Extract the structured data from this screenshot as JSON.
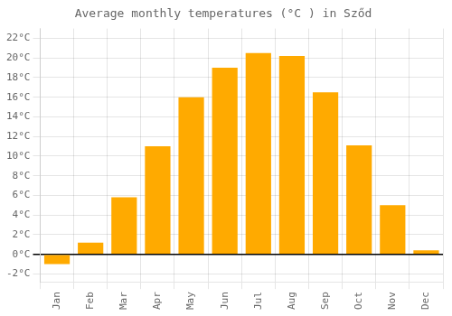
{
  "chart_data": {
    "type": "bar",
    "title": "Average monthly temperatures (°C ) in Sződ",
    "categories": [
      "Jan",
      "Feb",
      "Mar",
      "Apr",
      "May",
      "Jun",
      "Jul",
      "Aug",
      "Sep",
      "Oct",
      "Nov",
      "Dec"
    ],
    "values": [
      -1.0,
      1.2,
      5.8,
      11.0,
      16.0,
      19.0,
      20.5,
      20.2,
      16.5,
      11.1,
      5.0,
      0.4
    ],
    "color": "#FFAA00",
    "ylim": [
      -2.8,
      23.0
    ],
    "yticks": [
      {
        "value": -2,
        "label": "-2°C"
      },
      {
        "value": 0,
        "label": "0°C"
      },
      {
        "value": 2,
        "label": "2°C"
      },
      {
        "value": 4,
        "label": "4°C"
      },
      {
        "value": 6,
        "label": "6°C"
      },
      {
        "value": 8,
        "label": "8°C"
      },
      {
        "value": 10,
        "label": "10°C"
      },
      {
        "value": 12,
        "label": "12°C"
      },
      {
        "value": 14,
        "label": "14°C"
      },
      {
        "value": 16,
        "label": "16°C"
      },
      {
        "value": 18,
        "label": "18°C"
      },
      {
        "value": 20,
        "label": "20°C"
      },
      {
        "value": 22,
        "label": "22°C"
      }
    ],
    "grid": true
  }
}
